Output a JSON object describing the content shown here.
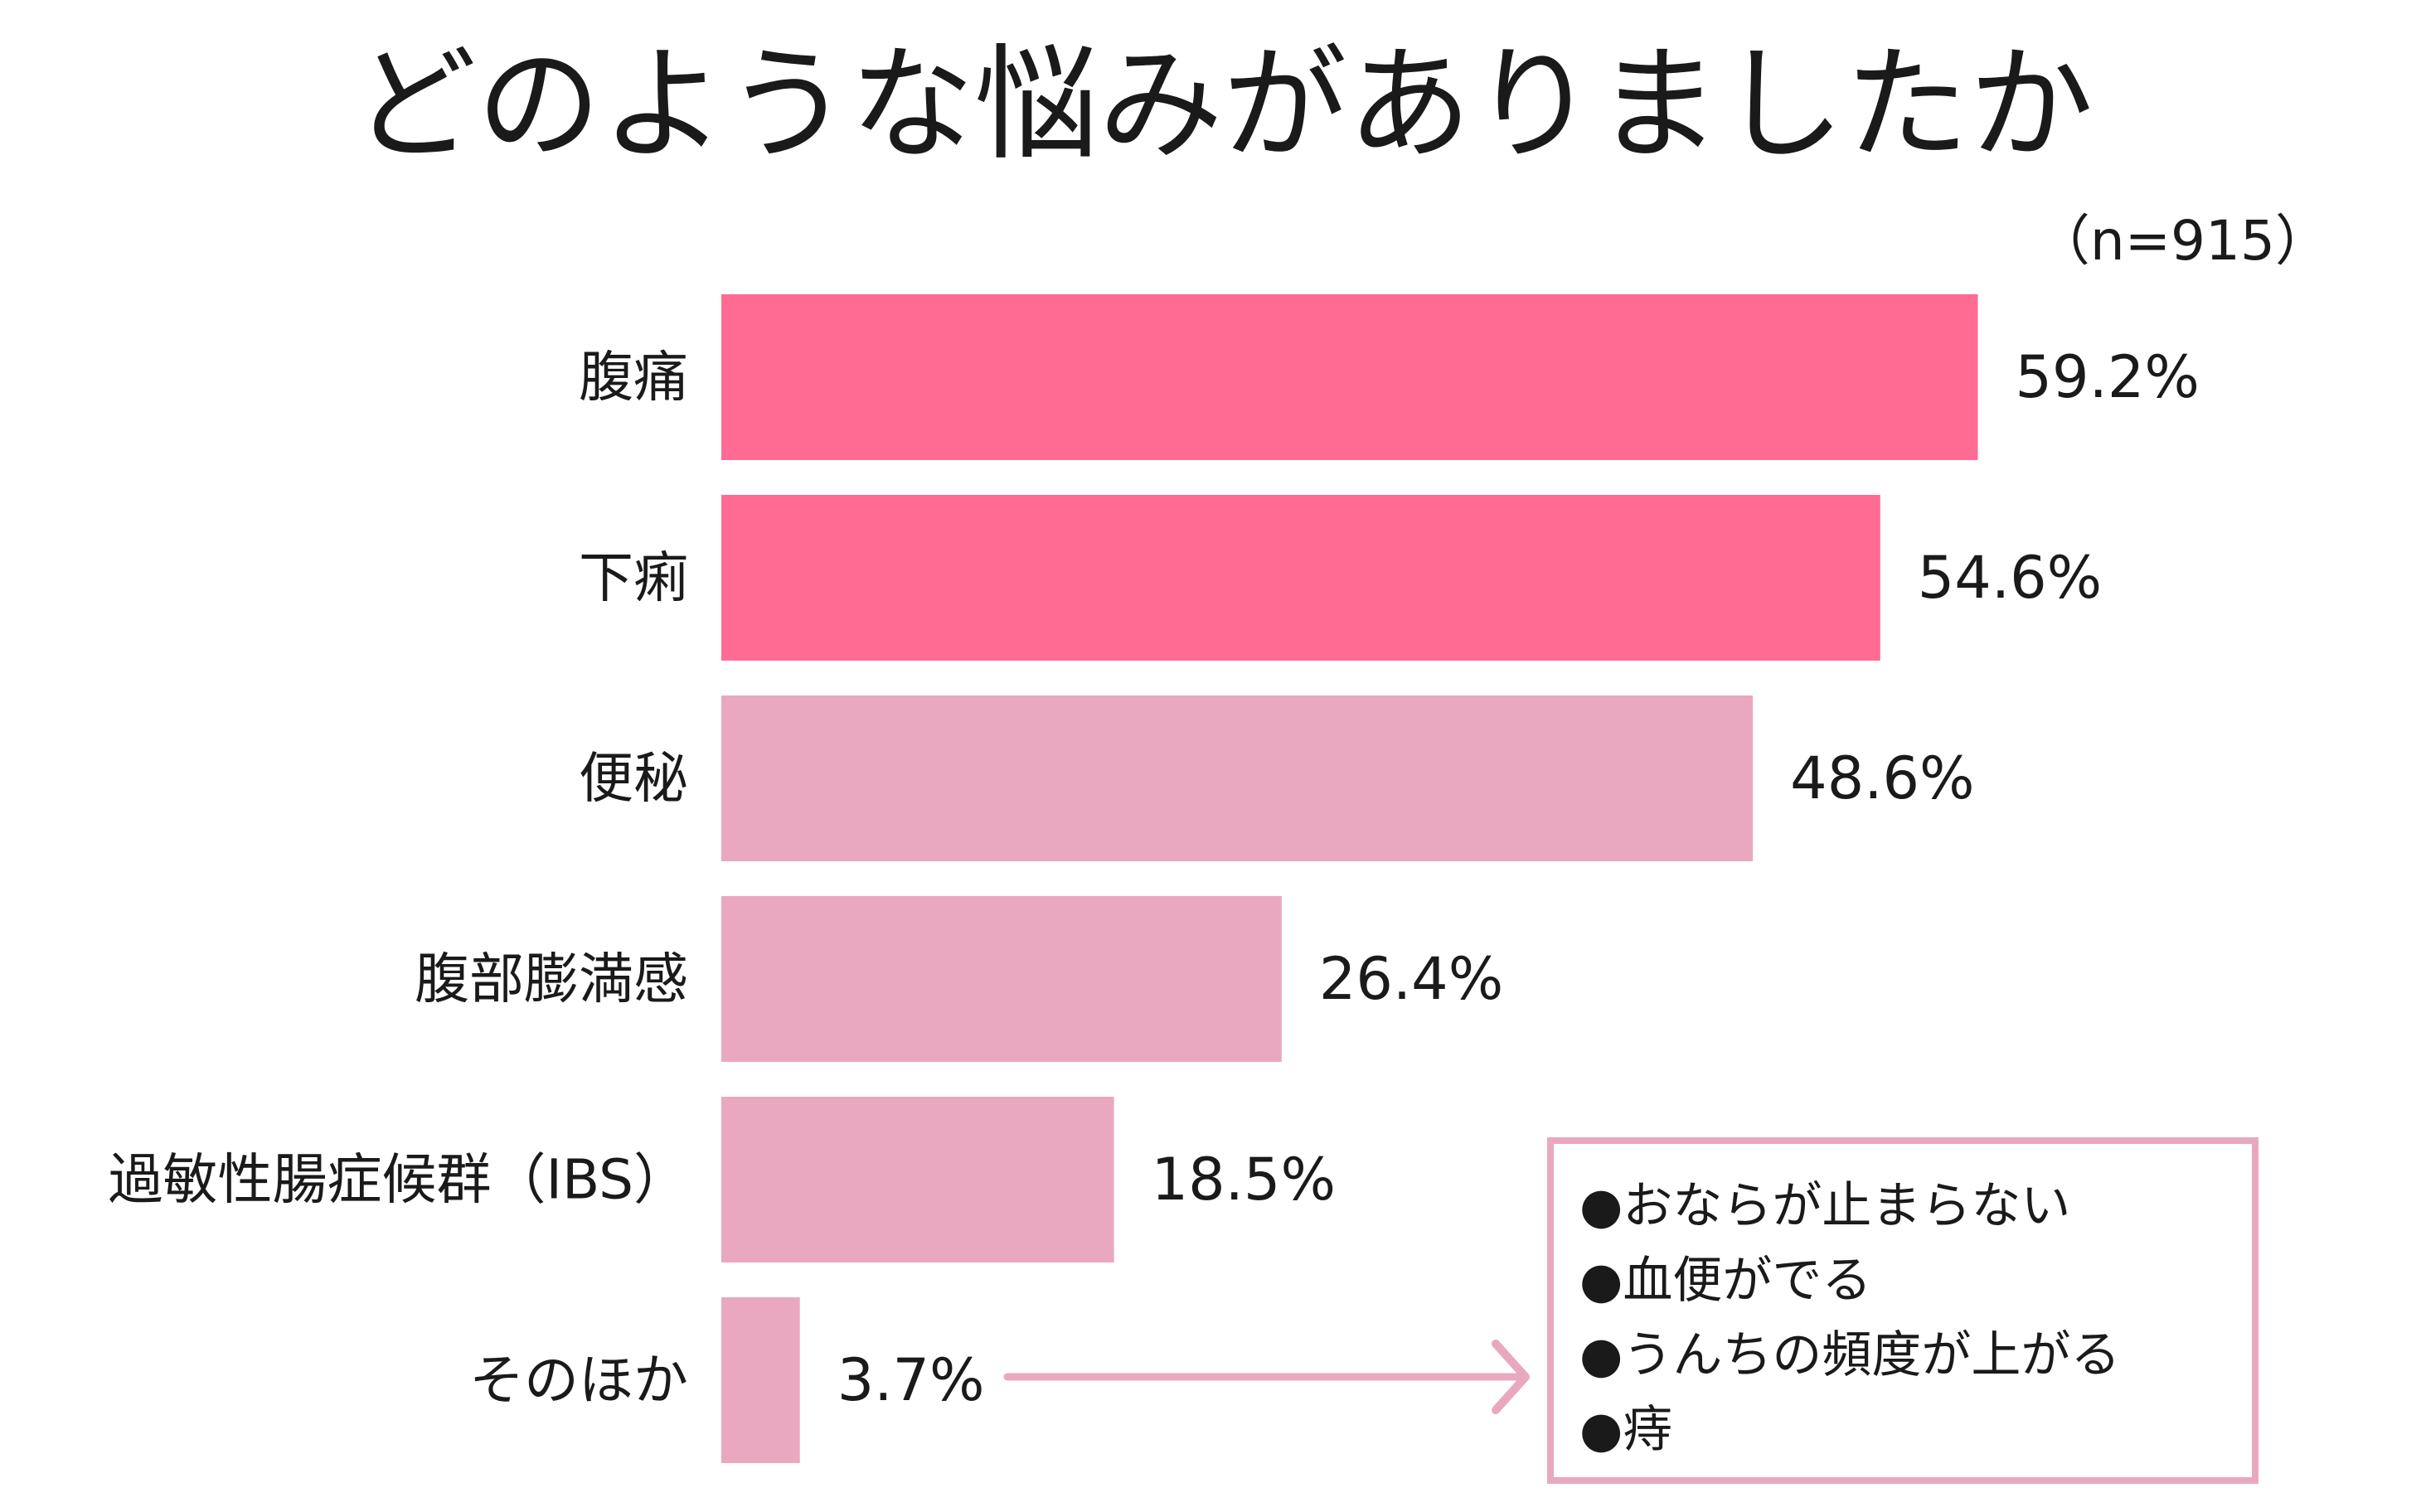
{
  "chart_data": {
    "type": "bar",
    "orientation": "horizontal",
    "title": "どのような悩みがありましたか",
    "note": "（n=915）",
    "categories": [
      "腹痛",
      "下痢",
      "便秘",
      "腹部膨満感",
      "過敏性腸症候群（IBS）",
      "そのほか"
    ],
    "values": [
      59.2,
      54.6,
      48.6,
      26.4,
      18.5,
      3.7
    ],
    "value_labels": [
      "59.2%",
      "54.6%",
      "48.6%",
      "26.4%",
      "18.5%",
      "3.7%"
    ],
    "highlight": [
      true,
      true,
      false,
      false,
      false,
      false
    ],
    "xlim": [
      0,
      60
    ],
    "grid": false,
    "legend": "none",
    "callout": {
      "from_category": "そのほか",
      "items": [
        "●おならが止まらない",
        "●血便がでる",
        "●うんちの頻度が上がる",
        "●痔"
      ]
    }
  },
  "colors": {
    "highlight_bar": "#FF6B93",
    "bar": "#EAA8C0",
    "callout": "#EAA8C0",
    "text": "#1a1a1a"
  }
}
